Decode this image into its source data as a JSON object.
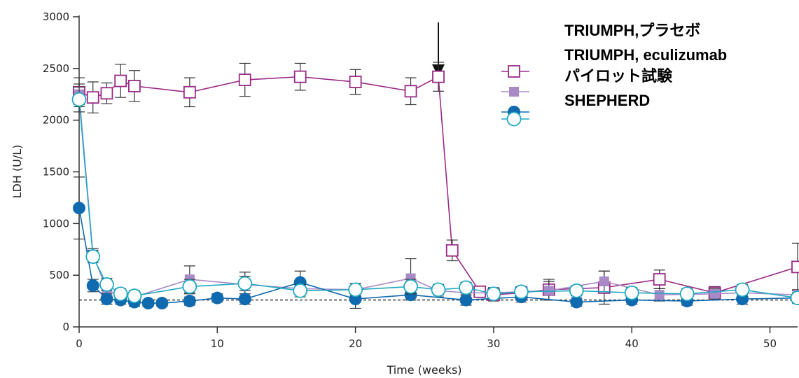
{
  "chart_data": {
    "type": "line",
    "xlabel": "Time (weeks)",
    "ylabel": "LDH (U/L)",
    "xlim": [
      0,
      52
    ],
    "ylim": [
      0,
      3000
    ],
    "x_ticks": [
      "0",
      "10",
      "20",
      "30",
      "40",
      "50"
    ],
    "y_ticks": [
      "0",
      "500",
      "1000",
      "1500",
      "2000",
      "2500",
      "3000"
    ],
    "reference_line": 260,
    "annotation_arrow_x": 26,
    "legend_position": "top-right",
    "legend_labels": [
      "TRIUMPH,プラセボ",
      "TRIUMPH, eculizumab",
      "パイロット試験",
      "SHEPHERD"
    ],
    "series": [
      {
        "name": "TRIUMPH,プラセボ",
        "color": "#9b2a86",
        "marker": "square-open",
        "points": [
          [
            0,
            2270
          ],
          [
            1,
            2220
          ],
          [
            2,
            2260
          ],
          [
            3,
            2380
          ],
          [
            4,
            2330
          ],
          [
            8,
            2270
          ],
          [
            12,
            2390
          ],
          [
            16,
            2420
          ],
          [
            20,
            2370
          ],
          [
            24,
            2280
          ],
          [
            26,
            2420
          ],
          [
            27,
            740
          ],
          [
            29,
            340
          ],
          [
            30,
            310
          ],
          [
            32,
            330
          ],
          [
            34,
            360
          ],
          [
            38,
            380
          ],
          [
            42,
            460
          ],
          [
            46,
            330
          ],
          [
            52,
            580
          ]
        ],
        "errors": [
          140,
          150,
          100,
          160,
          150,
          140,
          160,
          130,
          120,
          130,
          140,
          100,
          40,
          60,
          40,
          100,
          160,
          90,
          60,
          230
        ]
      },
      {
        "name": "TRIUMPH, eculizumab",
        "color": "#a98ac6",
        "marker": "square-filled",
        "points": [
          [
            0,
            2250
          ],
          [
            1,
            700
          ],
          [
            2,
            360
          ],
          [
            3,
            300
          ],
          [
            4,
            290
          ],
          [
            8,
            460
          ],
          [
            12,
            410
          ],
          [
            16,
            370
          ],
          [
            20,
            360
          ],
          [
            24,
            470
          ],
          [
            26,
            350
          ],
          [
            28,
            330
          ],
          [
            30,
            330
          ],
          [
            32,
            340
          ],
          [
            34,
            350
          ],
          [
            38,
            440
          ],
          [
            42,
            310
          ],
          [
            46,
            320
          ],
          [
            48,
            330
          ],
          [
            52,
            310
          ]
        ],
        "errors": [
          100,
          60,
          60,
          50,
          50,
          130,
          120,
          60,
          60,
          190,
          60,
          50,
          50,
          50,
          90,
          100,
          60,
          50,
          60,
          50
        ]
      },
      {
        "name": "SHEPHERD",
        "color": "#0f6ab0",
        "marker": "circle-filled",
        "points": [
          [
            0,
            1150
          ],
          [
            1,
            400
          ],
          [
            2,
            270
          ],
          [
            3,
            260
          ],
          [
            4,
            240
          ],
          [
            5,
            230
          ],
          [
            6,
            230
          ],
          [
            8,
            250
          ],
          [
            10,
            280
          ],
          [
            12,
            270
          ],
          [
            16,
            430
          ],
          [
            20,
            270
          ],
          [
            24,
            310
          ],
          [
            28,
            260
          ],
          [
            32,
            290
          ],
          [
            36,
            240
          ],
          [
            40,
            260
          ],
          [
            44,
            250
          ],
          [
            48,
            270
          ],
          [
            52,
            280
          ]
        ],
        "errors": [
          300,
          60,
          50,
          40,
          40,
          30,
          30,
          40,
          40,
          50,
          110,
          90,
          50,
          50,
          50,
          40,
          40,
          40,
          50,
          50
        ]
      },
      {
        "name": "",
        "color": "#1fa9c4",
        "marker": "circle-open",
        "points": [
          [
            0,
            2200
          ],
          [
            1,
            680
          ],
          [
            2,
            410
          ],
          [
            3,
            320
          ],
          [
            4,
            300
          ],
          [
            8,
            390
          ],
          [
            12,
            420
          ],
          [
            16,
            350
          ],
          [
            20,
            360
          ],
          [
            24,
            390
          ],
          [
            26,
            360
          ],
          [
            28,
            380
          ],
          [
            30,
            320
          ],
          [
            32,
            340
          ],
          [
            36,
            350
          ],
          [
            40,
            330
          ],
          [
            44,
            320
          ],
          [
            48,
            360
          ],
          [
            52,
            280
          ]
        ],
        "errors": [
          120,
          60,
          60,
          50,
          50,
          70,
          70,
          60,
          60,
          70,
          50,
          50,
          50,
          50,
          50,
          50,
          50,
          50,
          50
        ]
      }
    ]
  }
}
